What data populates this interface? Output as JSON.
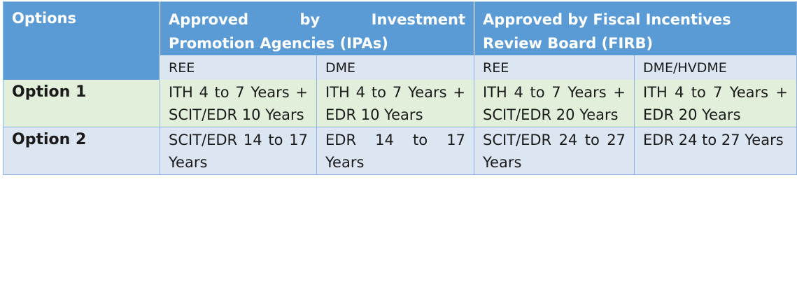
{
  "header": {
    "options": "Options",
    "ipa_line1": "Approved by Investment",
    "ipa_line2": "Promotion Agencies (IPAs)",
    "firb_line1": "Approved by Fiscal Incentives",
    "firb_line2": "Review Board (FIRB)"
  },
  "subheader": [
    "REE",
    "DME",
    "REE",
    "DME/HVDME"
  ],
  "rows": [
    {
      "label": "Option 1",
      "cells": [
        "ITH 4 to 7 Years + SCIT/EDR 10 Years",
        "ITH 4 to 7 Years + EDR 10 Years",
        "ITH 4 to 7 Years + SCIT/EDR 20 Years",
        "ITH 4 to 7 Years + EDR 20 Years"
      ]
    },
    {
      "label": "Option 2",
      "cells": [
        "SCIT/EDR 14 to 17 Years",
        "EDR 14 to 17 Years",
        "SCIT/EDR 24 to 27 Years",
        "EDR 24 to 27 Years"
      ]
    }
  ],
  "colors": {
    "header_bg": "#5b9bd5",
    "subheader_bg": "#dce6f2",
    "option1_bg": "#e2efda",
    "option2_bg": "#dce6f2"
  }
}
